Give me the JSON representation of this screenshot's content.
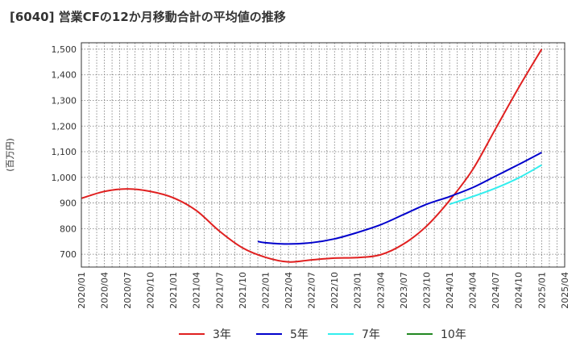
{
  "chart_data": {
    "type": "line",
    "title": "[6040]  営業CFの12か月移動合計の平均値の推移",
    "ylabel": "(百万円)",
    "xlabel": "",
    "ylim": [
      650,
      1525
    ],
    "yticks": [
      700,
      800,
      900,
      1000,
      1100,
      1200,
      1300,
      1400,
      1500
    ],
    "ytick_labels": [
      "700",
      "800",
      "900",
      "1,000",
      "1,100",
      "1,200",
      "1,300",
      "1,400",
      "1,500"
    ],
    "xticks": [
      "2020/01",
      "2020/04",
      "2020/07",
      "2020/10",
      "2021/01",
      "2021/04",
      "2021/07",
      "2021/10",
      "2022/01",
      "2022/04",
      "2022/07",
      "2022/10",
      "2023/01",
      "2023/04",
      "2023/07",
      "2023/10",
      "2024/01",
      "2024/04",
      "2024/07",
      "2024/10",
      "2025/01",
      "2025/04"
    ],
    "grid": true,
    "legend_position": "bottom",
    "series": [
      {
        "name": "3年",
        "color": "#e02020",
        "points": [
          [
            "2020/01",
            918
          ],
          [
            "2020/04",
            945
          ],
          [
            "2020/07",
            955
          ],
          [
            "2020/10",
            945
          ],
          [
            "2021/01",
            920
          ],
          [
            "2021/04",
            870
          ],
          [
            "2021/07",
            790
          ],
          [
            "2021/10",
            725
          ],
          [
            "2022/01",
            688
          ],
          [
            "2022/04",
            670
          ],
          [
            "2022/07",
            678
          ],
          [
            "2022/10",
            685
          ],
          [
            "2023/01",
            687
          ],
          [
            "2023/04",
            698
          ],
          [
            "2023/07",
            740
          ],
          [
            "2023/10",
            810
          ],
          [
            "2024/01",
            910
          ],
          [
            "2024/04",
            1030
          ],
          [
            "2024/07",
            1190
          ],
          [
            "2024/10",
            1350
          ],
          [
            "2025/01",
            1500
          ]
        ]
      },
      {
        "name": "5年",
        "color": "#0000cc",
        "points": [
          [
            "2021/12",
            750
          ],
          [
            "2022/01",
            745
          ],
          [
            "2022/04",
            740
          ],
          [
            "2022/07",
            745
          ],
          [
            "2022/10",
            760
          ],
          [
            "2023/01",
            785
          ],
          [
            "2023/04",
            815
          ],
          [
            "2023/07",
            855
          ],
          [
            "2023/10",
            895
          ],
          [
            "2024/01",
            925
          ],
          [
            "2024/04",
            960
          ],
          [
            "2024/07",
            1005
          ],
          [
            "2024/10",
            1050
          ],
          [
            "2025/01",
            1097
          ]
        ]
      },
      {
        "name": "7年",
        "color": "#33eeee",
        "points": [
          [
            "2024/01",
            895
          ],
          [
            "2024/04",
            925
          ],
          [
            "2024/07",
            958
          ],
          [
            "2024/10",
            998
          ],
          [
            "2025/01",
            1048
          ]
        ]
      },
      {
        "name": "10年",
        "color": "#228822",
        "points": []
      }
    ]
  }
}
